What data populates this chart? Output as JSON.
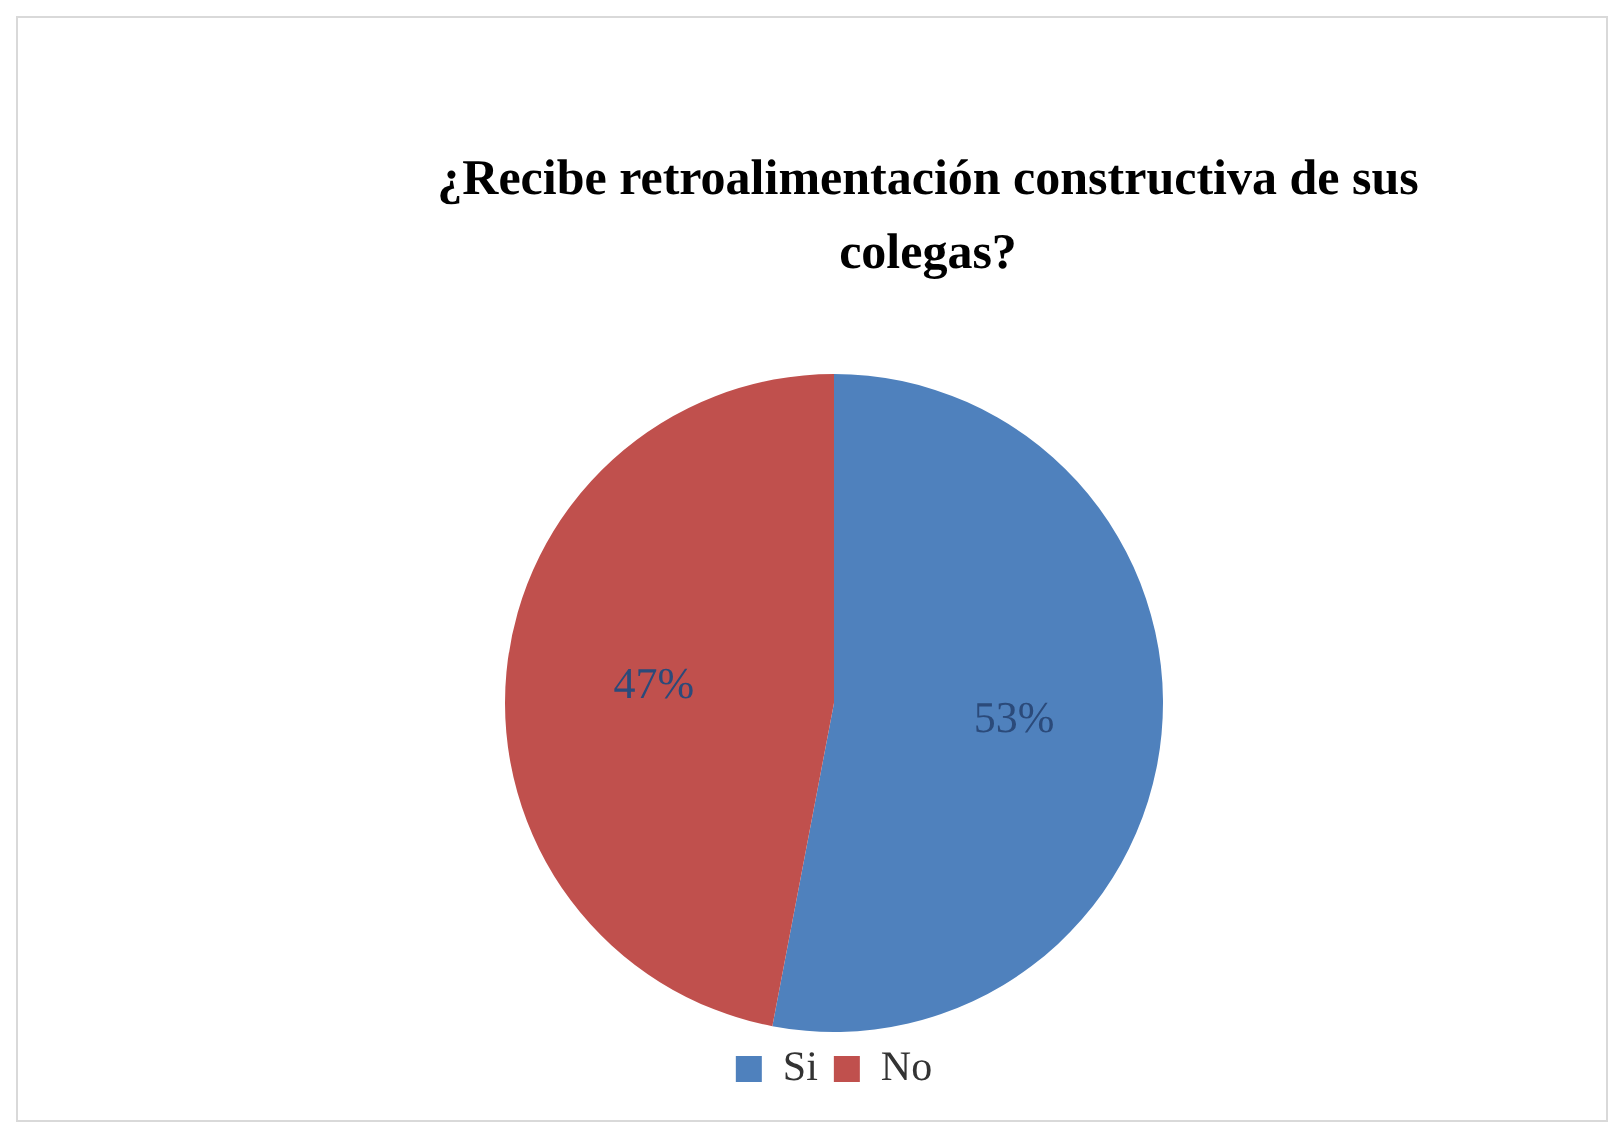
{
  "chart_data": {
    "type": "pie",
    "title": "¿Recibe retroalimentación constructiva de sus colegas?",
    "categories": [
      "Si",
      "No"
    ],
    "values": [
      53,
      47
    ],
    "value_labels": [
      "53%",
      "47%"
    ],
    "colors": [
      "#4f81bd",
      "#c0504d"
    ],
    "legend": "bottom"
  }
}
